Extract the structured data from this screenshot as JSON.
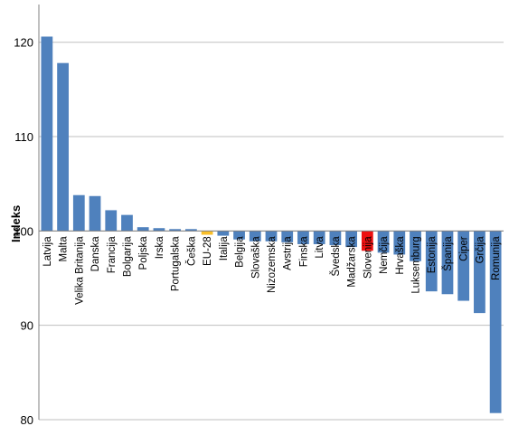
{
  "chart_data": {
    "type": "bar",
    "title": "",
    "xlabel": "",
    "ylabel": "Indeks",
    "ylim": [
      80,
      124
    ],
    "yticks": [
      80,
      90,
      100,
      110,
      120
    ],
    "baseline": 100,
    "grid": true,
    "legend": "none",
    "colors": {
      "default": "#4f81bd",
      "EU-28": "#f9bf2a",
      "Slovenija": "#ee1111",
      "grid": "#bfbfbf",
      "axis": "#808080"
    },
    "categories": [
      "Latvija",
      "Malta",
      "Velika Britanija",
      "Danska",
      "Francija",
      "Bolgarija",
      "Poljska",
      "Irska",
      "Portugalska",
      "Češka",
      "EU-28",
      "Italija",
      "Belgija",
      "Slovaška",
      "Nizozemska",
      "Avstrija",
      "Finska",
      "Litva",
      "Švedska",
      "Madžarska",
      "Slovenija",
      "Nemčija",
      "Hrvaška",
      "Luksemburg",
      "Estonija",
      "Španija",
      "Ciper",
      "Grčija",
      "Romunija"
    ],
    "values": [
      120.6,
      117.8,
      103.8,
      103.7,
      102.2,
      101.7,
      100.4,
      100.3,
      100.2,
      100.2,
      99.6,
      99.5,
      99.1,
      98.9,
      98.9,
      98.8,
      98.6,
      98.6,
      98.5,
      98.3,
      97.9,
      97.7,
      97.5,
      96.8,
      93.6,
      93.3,
      92.6,
      91.3,
      80.7
    ]
  }
}
